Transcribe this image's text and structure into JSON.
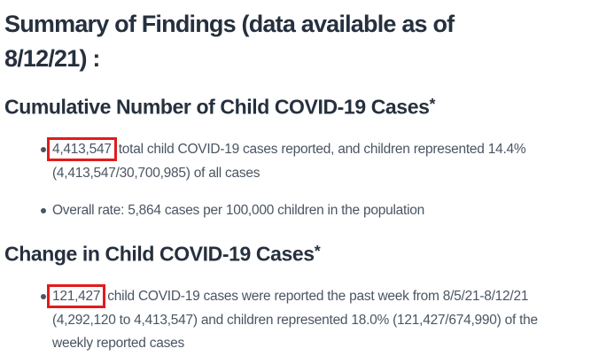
{
  "colors": {
    "heading-text": "#26303e",
    "body-text": "#4a5563",
    "highlight-border": "#e01c1c",
    "page-bg": "#ffffff"
  },
  "title": {
    "lines": [
      "Summary of Findings (data available as of",
      "8/12/21) :"
    ]
  },
  "sections": [
    {
      "heading": "Cumulative Number of Child COVID-19 Cases",
      "asterisk": "*",
      "bullets": [
        {
          "highlight": "4,413,547",
          "lines": [
            "total child COVID-19 cases reported, and children represented 14.4%",
            "(4,413,547/30,700,985) of all cases"
          ]
        },
        {
          "lines": [
            "Overall rate: 5,864 cases per 100,000 children in the population"
          ]
        }
      ]
    },
    {
      "heading": "Change in Child COVID-19 Cases",
      "asterisk": "*",
      "bullets": [
        {
          "highlight": "121,427",
          "lines": [
            "child COVID-19 cases were reported the past week from 8/5/21-8/12/21",
            "(4,292,120 to 4,413,547) and children represented 18.0% (121,427/674,990) of the",
            "weekly reported cases"
          ]
        }
      ]
    }
  ]
}
